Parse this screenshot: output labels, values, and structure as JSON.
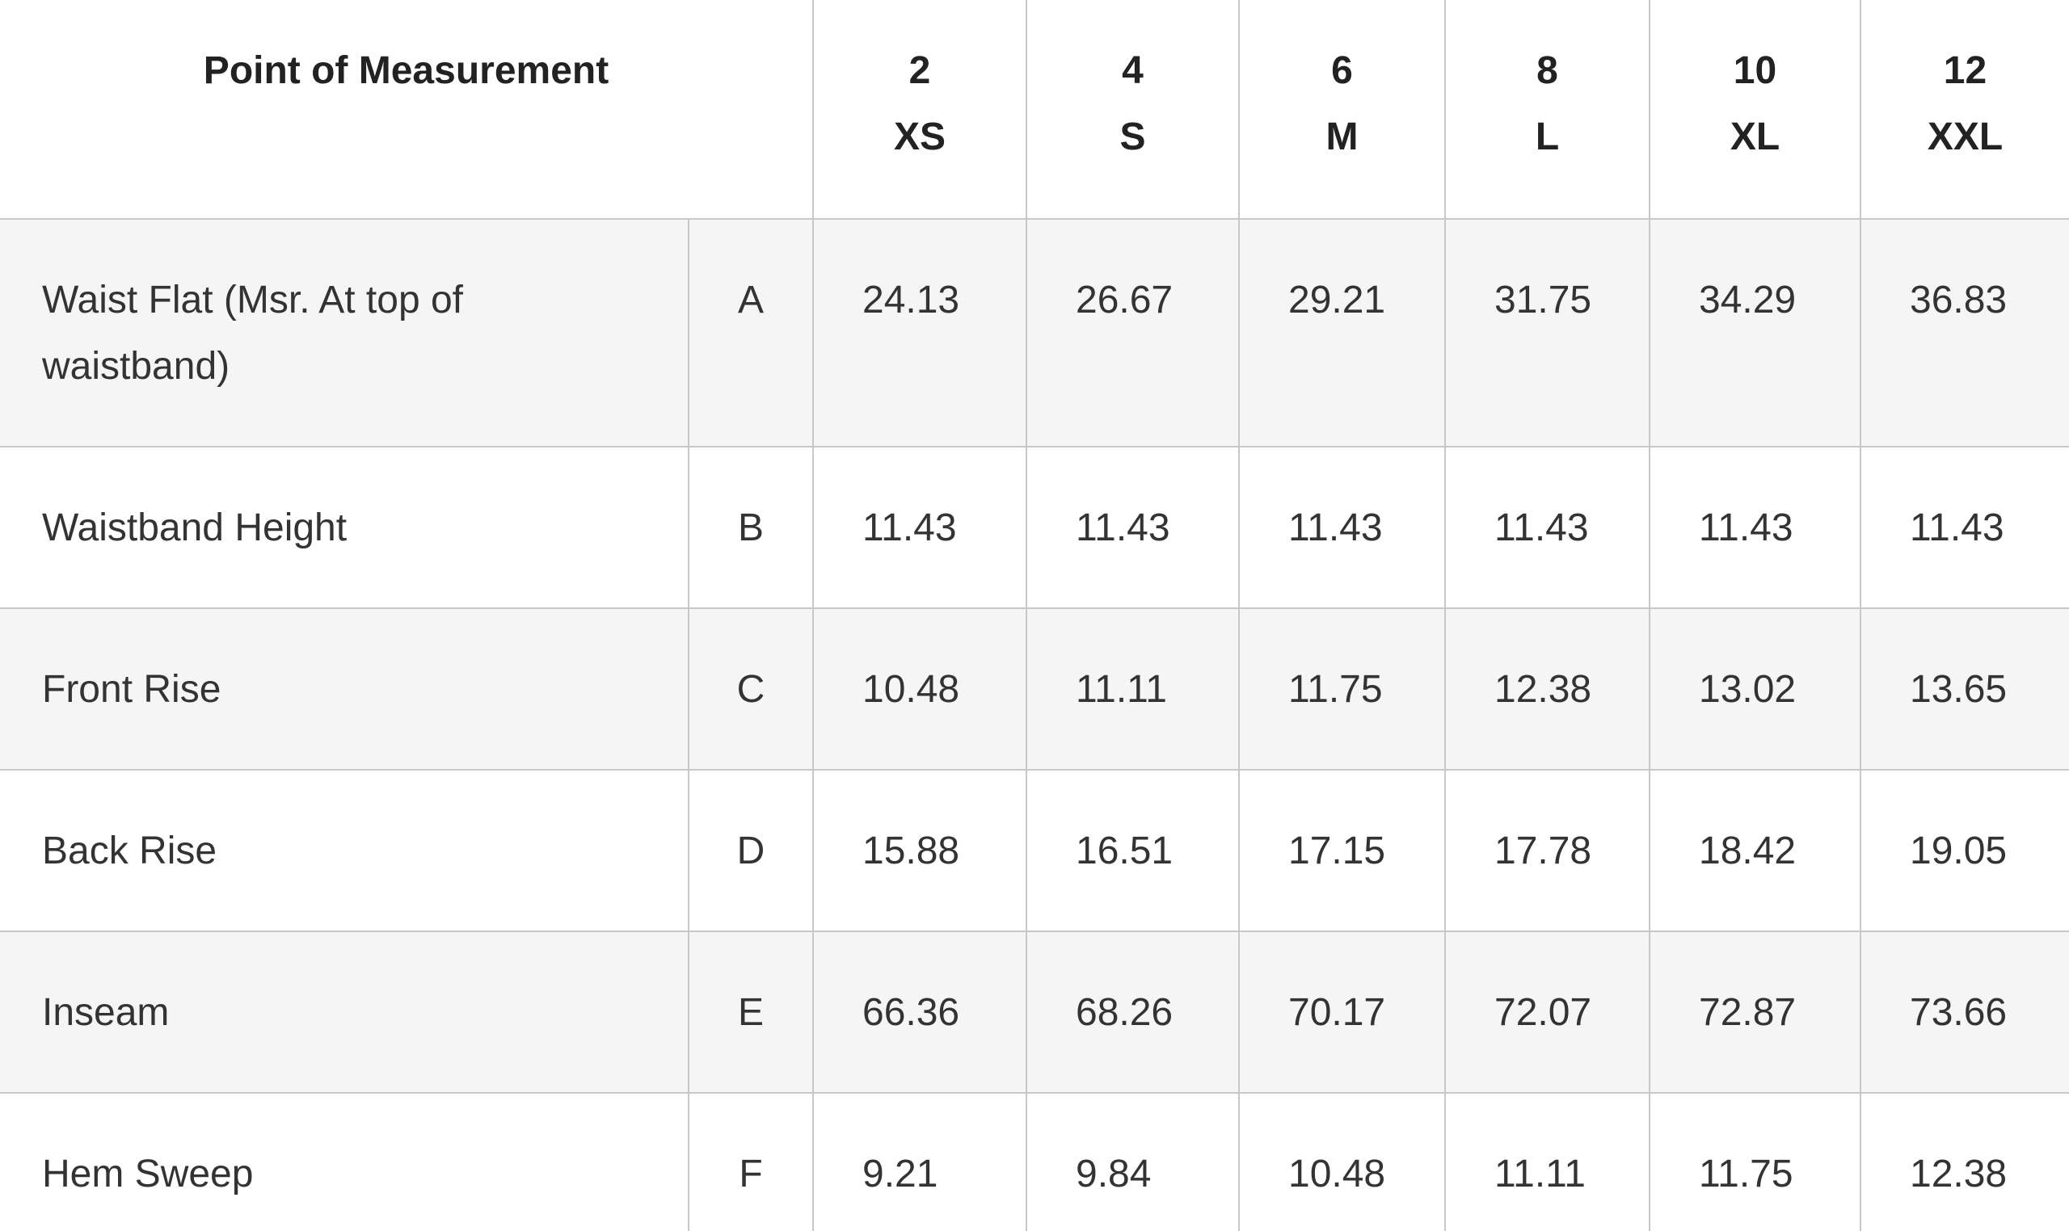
{
  "header": {
    "title": "Point of Measurement",
    "sizes": [
      {
        "number": 2,
        "label": "XS"
      },
      {
        "number": 4,
        "label": "S"
      },
      {
        "number": 6,
        "label": "M"
      },
      {
        "number": 8,
        "label": "L"
      },
      {
        "number": 10,
        "label": "XL"
      },
      {
        "number": 12,
        "label": "XXL"
      }
    ]
  },
  "table": {
    "rows": [
      {
        "name": "Waist Flat (Msr. At top of waistband)",
        "code": "A",
        "values": [
          24.13,
          26.67,
          29.21,
          31.75,
          34.29,
          36.83
        ]
      },
      {
        "name": "Waistband Height",
        "code": "B",
        "values": [
          11.43,
          11.43,
          11.43,
          11.43,
          11.43,
          11.43
        ]
      },
      {
        "name": "Front Rise",
        "code": "C",
        "values": [
          10.48,
          11.11,
          11.75,
          12.38,
          13.02,
          13.65
        ]
      },
      {
        "name": "Back Rise",
        "code": "D",
        "values": [
          15.88,
          16.51,
          17.15,
          17.78,
          18.42,
          19.05
        ]
      },
      {
        "name": "Inseam",
        "code": "E",
        "values": [
          66.36,
          68.26,
          70.17,
          72.07,
          72.87,
          73.66
        ]
      },
      {
        "name": "Hem Sweep",
        "code": "F",
        "values": [
          9.21,
          9.84,
          10.48,
          11.11,
          11.75,
          12.38
        ]
      }
    ]
  }
}
